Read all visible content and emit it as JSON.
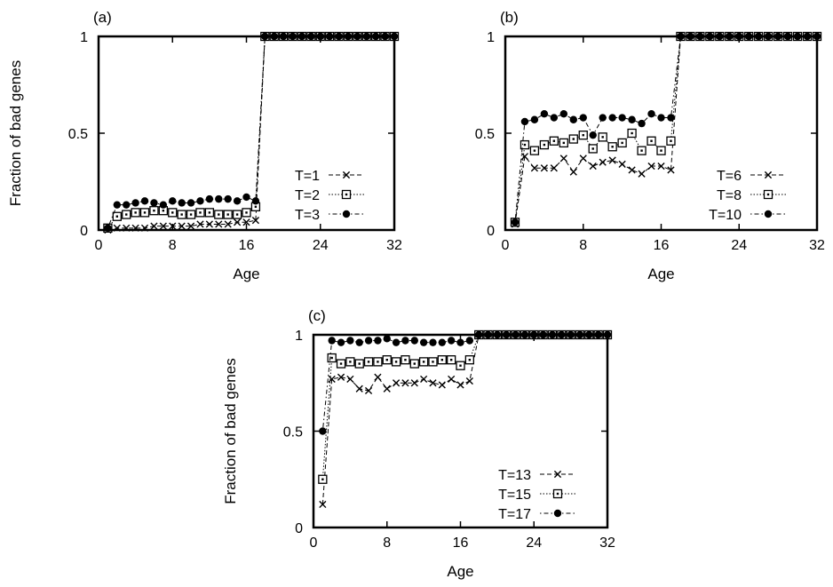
{
  "chart_data": [
    {
      "panel_label": "(a)",
      "type": "scatter",
      "xlabel": "Age",
      "ylabel": "Fraction of bad genes",
      "xlim": [
        0,
        32
      ],
      "ylim": [
        0,
        1
      ],
      "xticks": [
        "0",
        "8",
        "16",
        "24",
        "32"
      ],
      "yticks": [
        "0",
        "0.5",
        "1"
      ],
      "legend_position": "center-right",
      "series": [
        {
          "name": "T=1",
          "marker": "cross",
          "line": "dashed",
          "x": [
            1,
            2,
            3,
            4,
            5,
            6,
            7,
            8,
            9,
            10,
            11,
            12,
            13,
            14,
            15,
            16,
            17,
            18,
            19,
            20,
            21,
            22,
            23,
            24,
            25,
            26,
            27,
            28,
            29,
            30,
            31,
            32
          ],
          "y": [
            0,
            0.01,
            0.01,
            0.01,
            0.01,
            0.02,
            0.02,
            0.02,
            0.02,
            0.02,
            0.03,
            0.03,
            0.03,
            0.03,
            0.04,
            0.04,
            0.05,
            1,
            1,
            1,
            1,
            1,
            1,
            1,
            1,
            1,
            1,
            1,
            1,
            1,
            1,
            1
          ]
        },
        {
          "name": "T=2",
          "marker": "square",
          "line": "dotted",
          "x": [
            1,
            2,
            3,
            4,
            5,
            6,
            7,
            8,
            9,
            10,
            11,
            12,
            13,
            14,
            15,
            16,
            17,
            18,
            19,
            20,
            21,
            22,
            23,
            24,
            25,
            26,
            27,
            28,
            29,
            30,
            31,
            32
          ],
          "y": [
            0.01,
            0.07,
            0.08,
            0.09,
            0.09,
            0.1,
            0.1,
            0.09,
            0.08,
            0.08,
            0.09,
            0.09,
            0.08,
            0.08,
            0.08,
            0.09,
            0.12,
            1,
            1,
            1,
            1,
            1,
            1,
            1,
            1,
            1,
            1,
            1,
            1,
            1,
            1,
            1
          ]
        },
        {
          "name": "T=3",
          "marker": "circle",
          "line": "dashdot",
          "x": [
            1,
            2,
            3,
            4,
            5,
            6,
            7,
            8,
            9,
            10,
            11,
            12,
            13,
            14,
            15,
            16,
            17,
            18,
            19,
            20,
            21,
            22,
            23,
            24,
            25,
            26,
            27,
            28,
            29,
            30,
            31,
            32
          ],
          "y": [
            0.01,
            0.13,
            0.13,
            0.14,
            0.15,
            0.14,
            0.13,
            0.15,
            0.14,
            0.14,
            0.15,
            0.16,
            0.16,
            0.16,
            0.15,
            0.17,
            0.15,
            1,
            1,
            1,
            1,
            1,
            1,
            1,
            1,
            1,
            1,
            1,
            1,
            1,
            1,
            1
          ]
        }
      ]
    },
    {
      "panel_label": "(b)",
      "type": "scatter",
      "xlabel": "Age",
      "ylabel": "",
      "xlim": [
        0,
        32
      ],
      "ylim": [
        0,
        1
      ],
      "xticks": [
        "0",
        "8",
        "16",
        "24",
        "32"
      ],
      "yticks": [
        "0",
        "0.5",
        "1"
      ],
      "legend_position": "center-right",
      "series": [
        {
          "name": "T=6",
          "marker": "cross",
          "line": "dashed",
          "x": [
            1,
            2,
            3,
            4,
            5,
            6,
            7,
            8,
            9,
            10,
            11,
            12,
            13,
            14,
            15,
            16,
            17,
            18,
            19,
            20,
            21,
            22,
            23,
            24,
            25,
            26,
            27,
            28,
            29,
            30,
            31,
            32
          ],
          "y": [
            0.03,
            0.38,
            0.32,
            0.32,
            0.32,
            0.37,
            0.3,
            0.37,
            0.33,
            0.35,
            0.36,
            0.34,
            0.31,
            0.29,
            0.33,
            0.33,
            0.31,
            1,
            1,
            1,
            1,
            1,
            1,
            1,
            1,
            1,
            1,
            1,
            1,
            1,
            1,
            1
          ]
        },
        {
          "name": "T=8",
          "marker": "square",
          "line": "dotted",
          "x": [
            1,
            2,
            3,
            4,
            5,
            6,
            7,
            8,
            9,
            10,
            11,
            12,
            13,
            14,
            15,
            16,
            17,
            18,
            19,
            20,
            21,
            22,
            23,
            24,
            25,
            26,
            27,
            28,
            29,
            30,
            31,
            32
          ],
          "y": [
            0.04,
            0.44,
            0.41,
            0.44,
            0.46,
            0.45,
            0.47,
            0.49,
            0.42,
            0.48,
            0.43,
            0.45,
            0.5,
            0.41,
            0.46,
            0.41,
            0.46,
            1,
            1,
            1,
            1,
            1,
            1,
            1,
            1,
            1,
            1,
            1,
            1,
            1,
            1,
            1
          ]
        },
        {
          "name": "T=10",
          "marker": "circle",
          "line": "dashdot",
          "x": [
            1,
            2,
            3,
            4,
            5,
            6,
            7,
            8,
            9,
            10,
            11,
            12,
            13,
            14,
            15,
            16,
            17,
            18,
            19,
            20,
            21,
            22,
            23,
            24,
            25,
            26,
            27,
            28,
            29,
            30,
            31,
            32
          ],
          "y": [
            0.04,
            0.56,
            0.57,
            0.6,
            0.58,
            0.6,
            0.57,
            0.58,
            0.49,
            0.58,
            0.58,
            0.58,
            0.57,
            0.55,
            0.6,
            0.58,
            0.58,
            1,
            1,
            1,
            1,
            1,
            1,
            1,
            1,
            1,
            1,
            1,
            1,
            1,
            1,
            1
          ]
        }
      ]
    },
    {
      "panel_label": "(c)",
      "type": "scatter",
      "xlabel": "Age",
      "ylabel": "Fraction of bad genes",
      "xlim": [
        0,
        32
      ],
      "ylim": [
        0,
        1
      ],
      "xticks": [
        "0",
        "8",
        "16",
        "24",
        "32"
      ],
      "yticks": [
        "0",
        "0.5",
        "1"
      ],
      "legend_position": "bottom-right",
      "series": [
        {
          "name": "T=13",
          "marker": "cross",
          "line": "dashed",
          "x": [
            1,
            2,
            3,
            4,
            5,
            6,
            7,
            8,
            9,
            10,
            11,
            12,
            13,
            14,
            15,
            16,
            17,
            18,
            19,
            20,
            21,
            22,
            23,
            24,
            25,
            26,
            27,
            28,
            29,
            30,
            31,
            32
          ],
          "y": [
            0.12,
            0.77,
            0.78,
            0.77,
            0.72,
            0.71,
            0.78,
            0.72,
            0.75,
            0.75,
            0.75,
            0.77,
            0.75,
            0.74,
            0.77,
            0.74,
            0.76,
            1,
            1,
            1,
            1,
            1,
            1,
            1,
            1,
            1,
            1,
            1,
            1,
            1,
            1,
            1
          ]
        },
        {
          "name": "T=15",
          "marker": "square",
          "line": "dotted",
          "x": [
            1,
            2,
            3,
            4,
            5,
            6,
            7,
            8,
            9,
            10,
            11,
            12,
            13,
            14,
            15,
            16,
            17,
            18,
            19,
            20,
            21,
            22,
            23,
            24,
            25,
            26,
            27,
            28,
            29,
            30,
            31,
            32
          ],
          "y": [
            0.25,
            0.88,
            0.85,
            0.86,
            0.85,
            0.86,
            0.86,
            0.87,
            0.86,
            0.87,
            0.85,
            0.86,
            0.86,
            0.87,
            0.87,
            0.84,
            0.87,
            1,
            1,
            1,
            1,
            1,
            1,
            1,
            1,
            1,
            1,
            1,
            1,
            1,
            1,
            1
          ]
        },
        {
          "name": "T=17",
          "marker": "circle",
          "line": "dashdot",
          "x": [
            1,
            2,
            3,
            4,
            5,
            6,
            7,
            8,
            9,
            10,
            11,
            12,
            13,
            14,
            15,
            16,
            17,
            18,
            19,
            20,
            21,
            22,
            23,
            24,
            25,
            26,
            27,
            28,
            29,
            30,
            31,
            32
          ],
          "y": [
            0.5,
            0.97,
            0.96,
            0.97,
            0.96,
            0.97,
            0.97,
            0.98,
            0.96,
            0.97,
            0.97,
            0.96,
            0.96,
            0.96,
            0.97,
            0.96,
            0.97,
            1,
            1,
            1,
            1,
            1,
            1,
            1,
            1,
            1,
            1,
            1,
            1,
            1,
            1,
            1
          ]
        }
      ]
    }
  ]
}
